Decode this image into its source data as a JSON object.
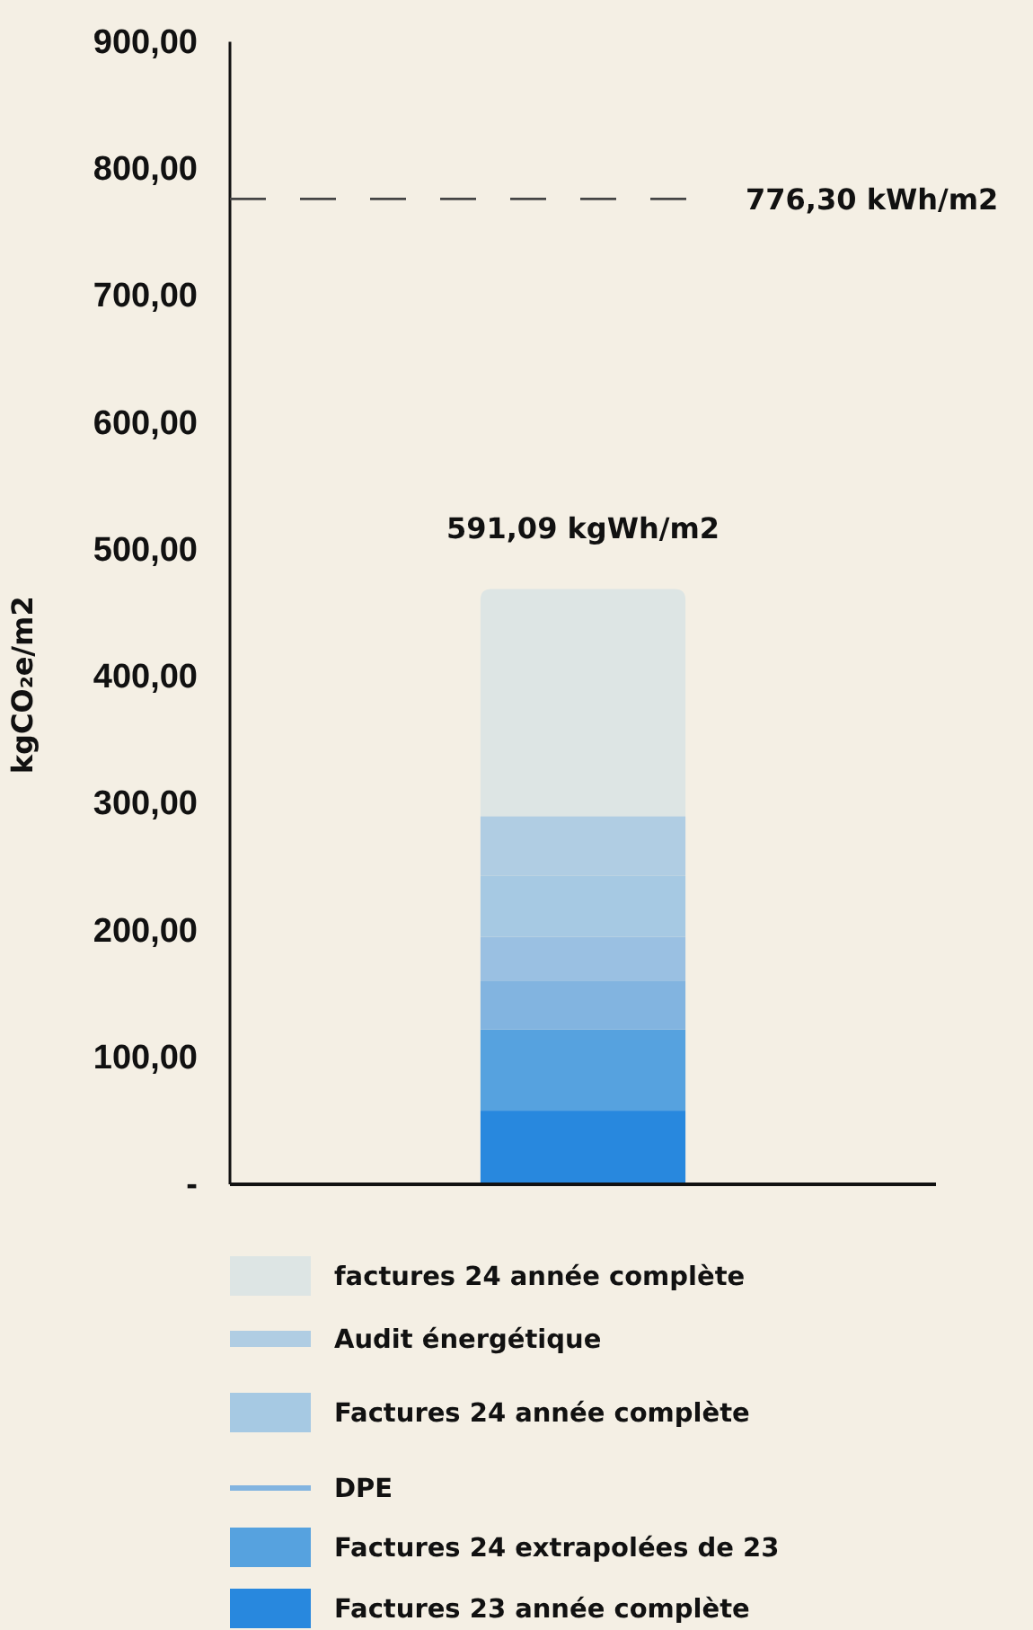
{
  "chart_data": {
    "type": "bar",
    "stacked": true,
    "categories": [
      null
    ],
    "ylabel": "kgCO₂e/m2",
    "ylim": [
      0,
      900
    ],
    "yticks": [
      {
        "value": 0,
        "label": "-"
      },
      {
        "value": 100,
        "label": "100,00"
      },
      {
        "value": 200,
        "label": "200,00"
      },
      {
        "value": 300,
        "label": "300,00"
      },
      {
        "value": 400,
        "label": "400,00"
      },
      {
        "value": 500,
        "label": "500,00"
      },
      {
        "value": 600,
        "label": "600,00"
      },
      {
        "value": 700,
        "label": "700,00"
      },
      {
        "value": 800,
        "label": "800,00"
      },
      {
        "value": 900,
        "label": "900,00"
      }
    ],
    "series": [
      {
        "name": "Factures 23 année complète",
        "color": "#2888de",
        "values": [
          58
        ]
      },
      {
        "name": "Factures 24 extrapolées de 23",
        "color": "#56a2df",
        "values": [
          64
        ]
      },
      {
        "name": "DPE",
        "color": "#82b4e0",
        "values": [
          38
        ]
      },
      {
        "color": "#9ac0e2",
        "values": [
          35
        ]
      },
      {
        "name": "Factures 24 année complète",
        "color": "#a6c9e3",
        "values": [
          48
        ]
      },
      {
        "name": "Audit énergétique",
        "color": "#b0cde3",
        "values": [
          47
        ]
      },
      {
        "name": "factures 24 année complète",
        "color": "#dde5e4",
        "values": [
          179
        ]
      }
    ],
    "annotations": [
      "591,09 kgWh/m2"
    ],
    "ref_lines": [
      {
        "axis": "y",
        "value": 776.3,
        "label": "776,30 kWh/m2",
        "line_style": "dashed",
        "color": "#444444"
      }
    ],
    "grid": false,
    "legend": "bottom"
  }
}
